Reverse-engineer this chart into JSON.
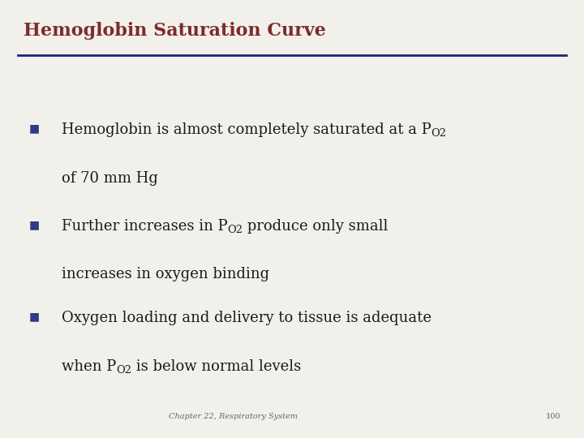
{
  "title": "Hemoglobin Saturation Curve",
  "title_color": "#7B2C2C",
  "title_fontsize": 16,
  "background_color": "#F2F0EA",
  "line_color": "#1A237E",
  "line_thickness": 2.0,
  "bullet_color": "#2E3A87",
  "text_color": "#1A1A1A",
  "footer_text": "Chapter 22, Respiratory System",
  "footer_page": "100",
  "footer_color": "#666666",
  "footer_fontsize": 7,
  "text_fontsize": 13,
  "bullets": [
    {
      "bx": 0.05,
      "by": 0.72,
      "line1_parts": [
        {
          "text": "Hemoglobin is almost completely saturated at a P",
          "sub": false
        },
        {
          "text": "O2",
          "sub": true
        },
        {
          "text": "",
          "sub": false
        }
      ],
      "line2_parts": [
        {
          "text": "of 70 mm Hg",
          "sub": false
        }
      ]
    },
    {
      "bx": 0.05,
      "by": 0.5,
      "line1_parts": [
        {
          "text": "Further increases in P",
          "sub": false
        },
        {
          "text": "O2",
          "sub": true
        },
        {
          "text": " produce only small",
          "sub": false
        }
      ],
      "line2_parts": [
        {
          "text": "increases in oxygen binding",
          "sub": false
        }
      ]
    },
    {
      "bx": 0.05,
      "by": 0.29,
      "line1_parts": [
        {
          "text": "Oxygen loading and delivery to tissue is adequate",
          "sub": false
        }
      ],
      "line2_parts": [
        {
          "text": "when P",
          "sub": false
        },
        {
          "text": "O2",
          "sub": true
        },
        {
          "text": " is below normal levels",
          "sub": false
        }
      ]
    }
  ]
}
